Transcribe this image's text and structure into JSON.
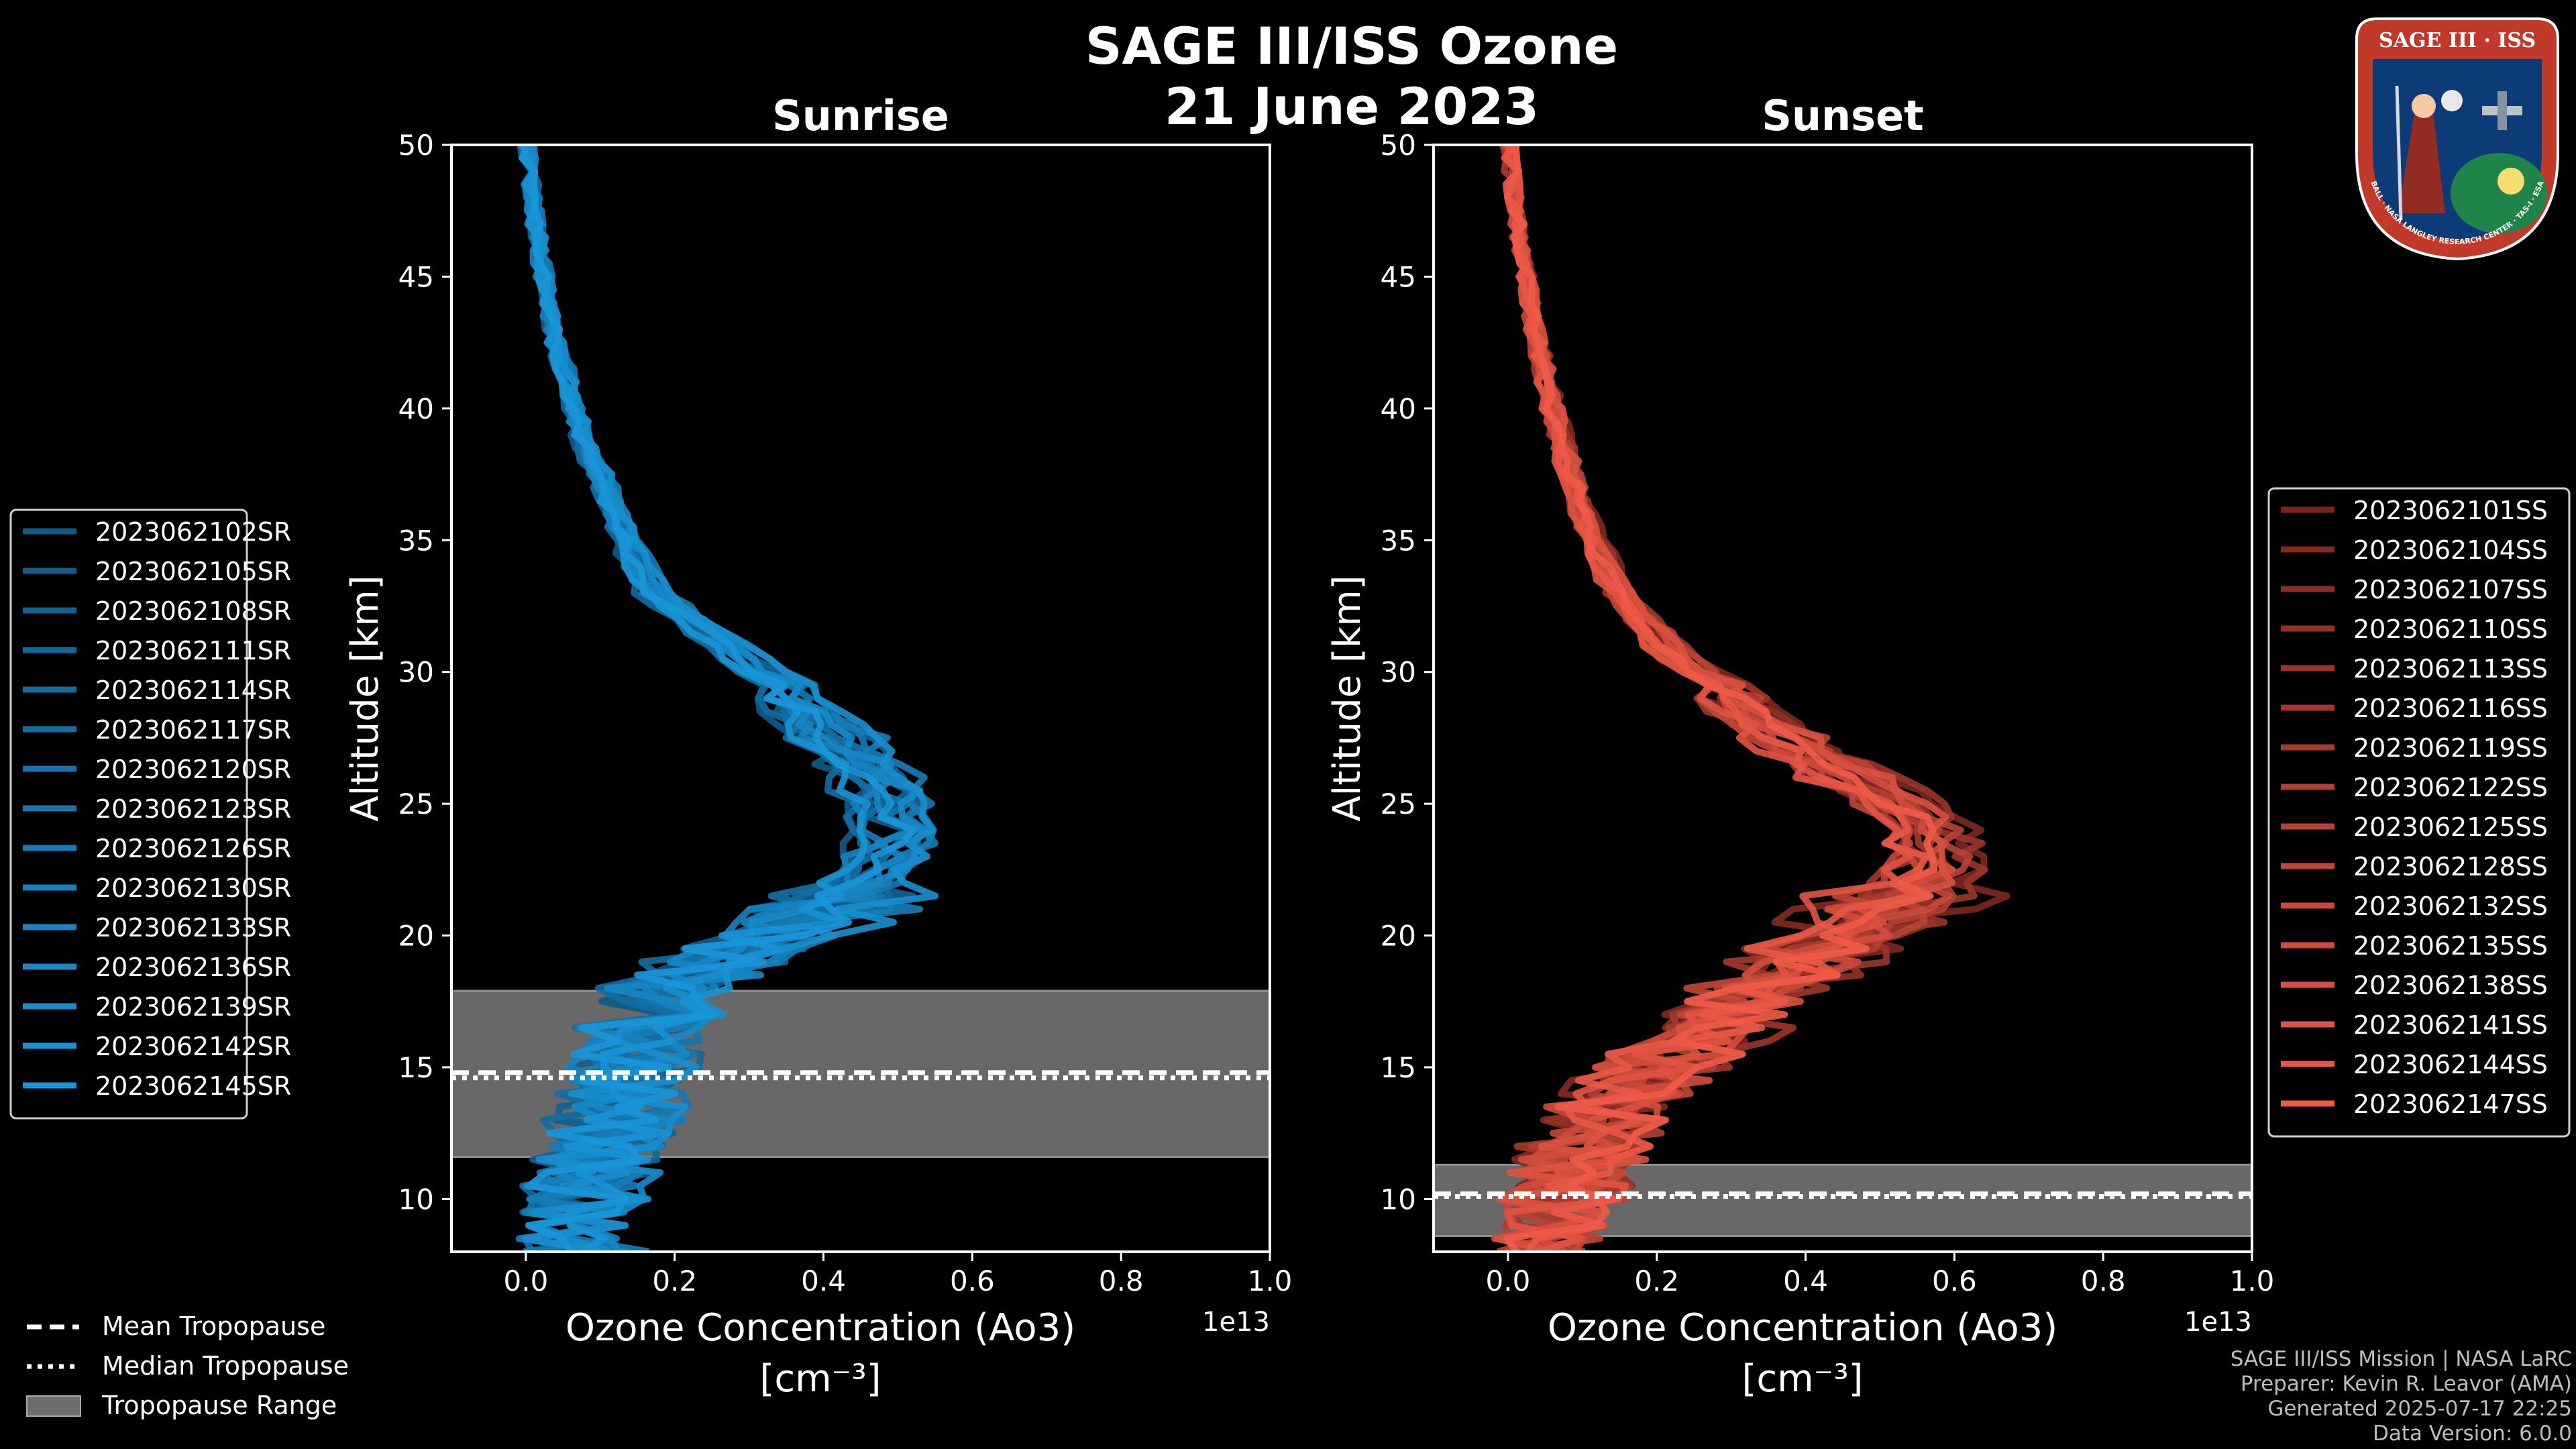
{
  "header": {
    "title_line1": "SAGE III/ISS Ozone",
    "title_line2": "21 June 2023"
  },
  "badge": {
    "text_top": "SAGE III · ISS",
    "text_bottom": "BALL · NASA LANGLEY RESEARCH CENTER · TAS-I · ESA",
    "colors": {
      "ring": "#c0392b",
      "field": "#0d3b78",
      "earth": "#1e8449"
    }
  },
  "footer": {
    "line1": "SAGE III/ISS Mission | NASA LaRC",
    "line2": "Preparer: Kevin R. Leavor (AMA)",
    "line3": "Generated 2025-07-17 22:25",
    "line4": "Data Version: 6.0.0"
  },
  "chart_data": [
    {
      "type": "line",
      "title": "Sunrise",
      "xlabel": "Ozone Concentration (Ao3)",
      "xlabel_units": "[cm⁻³]",
      "ylabel": "Altitude [km]",
      "x_offset_label": "1e13",
      "xlim": [
        -0.1,
        1.0
      ],
      "ylim": [
        8,
        50
      ],
      "xticks": [
        0.0,
        0.2,
        0.4,
        0.6,
        0.8,
        1.0
      ],
      "xtick_labels": [
        "0.0",
        "0.2",
        "0.4",
        "0.6",
        "0.8",
        "1.0"
      ],
      "yticks": [
        10,
        15,
        20,
        25,
        30,
        35,
        40,
        45,
        50
      ],
      "tropopause": {
        "mean": 14.8,
        "median": 14.6,
        "range": [
          11.6,
          17.9
        ]
      },
      "color_dark": "#0b3a5c",
      "color_light": "#1a95d8",
      "base_profile": {
        "alt": [
          8,
          9,
          10,
          11,
          12,
          13,
          14,
          15,
          16,
          17,
          18,
          19,
          20,
          21,
          22,
          23,
          24,
          25,
          26,
          27,
          28,
          29,
          30,
          31,
          32,
          33,
          34,
          35,
          36,
          37,
          38,
          39,
          40,
          41,
          42,
          43,
          44,
          45,
          46,
          47,
          48,
          49,
          50
        ],
        "value": [
          0.08,
          0.08,
          0.08,
          0.09,
          0.1,
          0.12,
          0.13,
          0.14,
          0.15,
          0.17,
          0.2,
          0.27,
          0.34,
          0.4,
          0.45,
          0.48,
          0.5,
          0.49,
          0.47,
          0.43,
          0.39,
          0.35,
          0.31,
          0.27,
          0.22,
          0.17,
          0.15,
          0.135,
          0.12,
          0.105,
          0.09,
          0.075,
          0.065,
          0.055,
          0.045,
          0.037,
          0.03,
          0.024,
          0.018,
          0.013,
          0.009,
          0.005,
          0.002
        ]
      },
      "series": [
        {
          "name": "2023062102SR"
        },
        {
          "name": "2023062105SR"
        },
        {
          "name": "2023062108SR"
        },
        {
          "name": "2023062111SR"
        },
        {
          "name": "2023062114SR"
        },
        {
          "name": "2023062117SR"
        },
        {
          "name": "2023062120SR"
        },
        {
          "name": "2023062123SR"
        },
        {
          "name": "2023062126SR"
        },
        {
          "name": "2023062130SR"
        },
        {
          "name": "2023062133SR"
        },
        {
          "name": "2023062136SR"
        },
        {
          "name": "2023062139SR"
        },
        {
          "name": "2023062142SR"
        },
        {
          "name": "2023062145SR"
        }
      ],
      "legend_position": "left"
    },
    {
      "type": "line",
      "title": "Sunset",
      "xlabel": "Ozone Concentration (Ao3)",
      "xlabel_units": "[cm⁻³]",
      "ylabel": "Altitude [km]",
      "x_offset_label": "1e13",
      "xlim": [
        -0.1,
        1.0
      ],
      "ylim": [
        8,
        50
      ],
      "xticks": [
        0.0,
        0.2,
        0.4,
        0.6,
        0.8,
        1.0
      ],
      "xtick_labels": [
        "0.0",
        "0.2",
        "0.4",
        "0.6",
        "0.8",
        "1.0"
      ],
      "yticks": [
        10,
        15,
        20,
        25,
        30,
        35,
        40,
        45,
        50
      ],
      "tropopause": {
        "mean": 10.2,
        "median": 10.1,
        "range": [
          8.6,
          11.3
        ]
      },
      "color_dark": "#3a0b08",
      "color_light": "#ef5a48",
      "base_profile": {
        "alt": [
          8,
          9,
          10,
          11,
          12,
          13,
          14,
          15,
          16,
          17,
          18,
          19,
          20,
          21,
          22,
          23,
          24,
          25,
          26,
          27,
          28,
          29,
          30,
          31,
          32,
          33,
          34,
          35,
          36,
          37,
          38,
          39,
          40,
          41,
          42,
          43,
          44,
          45,
          46,
          47,
          48,
          49,
          50
        ],
        "value": [
          0.03,
          0.05,
          0.07,
          0.09,
          0.11,
          0.13,
          0.16,
          0.2,
          0.25,
          0.3,
          0.35,
          0.4,
          0.45,
          0.5,
          0.55,
          0.57,
          0.55,
          0.52,
          0.46,
          0.4,
          0.34,
          0.29,
          0.25,
          0.21,
          0.18,
          0.15,
          0.13,
          0.115,
          0.1,
          0.09,
          0.08,
          0.07,
          0.06,
          0.052,
          0.044,
          0.037,
          0.03,
          0.024,
          0.018,
          0.013,
          0.009,
          0.005,
          0.002
        ]
      },
      "series": [
        {
          "name": "2023062101SS"
        },
        {
          "name": "2023062104SS"
        },
        {
          "name": "2023062107SS"
        },
        {
          "name": "2023062110SS"
        },
        {
          "name": "2023062113SS"
        },
        {
          "name": "2023062116SS"
        },
        {
          "name": "2023062119SS"
        },
        {
          "name": "2023062122SS"
        },
        {
          "name": "2023062125SS"
        },
        {
          "name": "2023062128SS"
        },
        {
          "name": "2023062132SS"
        },
        {
          "name": "2023062135SS"
        },
        {
          "name": "2023062138SS"
        },
        {
          "name": "2023062141SS"
        },
        {
          "name": "2023062144SS"
        },
        {
          "name": "2023062147SS"
        }
      ],
      "legend_position": "right"
    }
  ],
  "tropopause_legend": {
    "mean_label": "Mean Tropopause",
    "median_label": "Median Tropopause",
    "range_label": "Tropopause Range",
    "range_color": "#6e6e6e"
  }
}
